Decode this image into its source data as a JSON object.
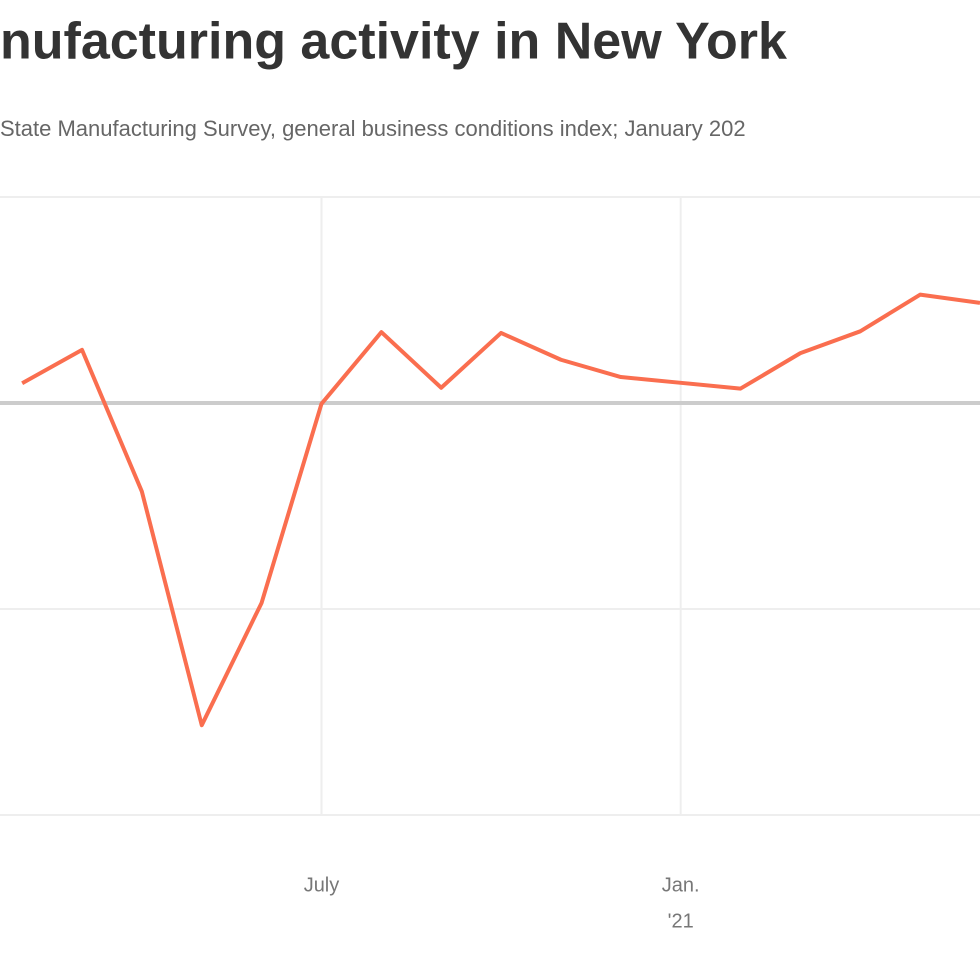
{
  "chart_data": {
    "type": "line",
    "title": "nufacturing activity in New York",
    "subtitle": "State Manufacturing Survey, general business conditions index; January 202",
    "x": [
      0,
      1,
      2,
      3,
      4,
      5,
      6,
      7,
      8,
      9,
      10,
      11,
      12,
      13,
      14,
      15,
      16
    ],
    "series": [
      {
        "color": "#fa6e4f",
        "values": [
          4.8,
          12.9,
          -21.5,
          -78.2,
          -48.5,
          -0.2,
          17.2,
          3.7,
          17.0,
          10.5,
          6.3,
          4.9,
          3.5,
          12.1,
          17.4,
          26.3,
          24.3
        ]
      }
    ],
    "xlim": [
      -0.37,
      16
    ],
    "ylim": [
      -100,
      50
    ],
    "xticks": [
      {
        "value": 5,
        "label": "July"
      },
      {
        "value": 11,
        "label": "Jan.",
        "sublabel": "'21"
      }
    ],
    "yticks": [
      -100,
      -50,
      0,
      50
    ],
    "zero_line": 0,
    "grid": true
  }
}
